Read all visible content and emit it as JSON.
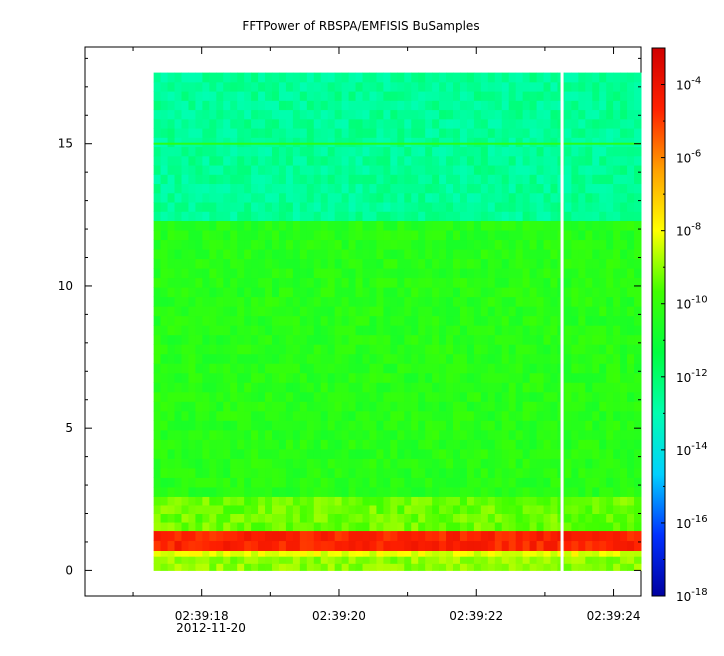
{
  "chart_data": {
    "type": "heatmap",
    "title": "FFTPower of RBSPA/EMFISIS  BuSamples",
    "xlabel": "",
    "ylabel": "",
    "x_ticks": [
      "02:39:18",
      "02:39:20",
      "02:39:22",
      "02:39:24"
    ],
    "x_date_label": "2012-11-20",
    "xlim": [
      "02:39:16.3",
      "02:39:24.4"
    ],
    "y_ticks": [
      "0",
      "5",
      "10",
      "15"
    ],
    "y_tick_values": [
      0,
      5,
      10,
      15
    ],
    "ylim": [
      -0.9,
      18.4
    ],
    "data_time_range": [
      "02:39:17.3",
      "02:39:24.4"
    ],
    "data_freq_range": [
      0,
      17.5
    ],
    "data_gap_time": "02:39:23.25",
    "colorbar": {
      "scale": "log",
      "range": [
        1e-18,
        0.001
      ],
      "tick_base": "10",
      "tick_exponents": [
        "-4",
        "-6",
        "-8",
        "-10",
        "-12",
        "-14",
        "-16",
        "-18"
      ],
      "tick_values": [
        -4,
        -6,
        -8,
        -10,
        -12,
        -14,
        -16,
        -18
      ],
      "colors": [
        "#0000a0",
        "#0030ff",
        "#00d0ff",
        "#00ffb0",
        "#00ff40",
        "#40ff00",
        "#ffff00",
        "#ffa000",
        "#ff2000",
        "#d00000"
      ]
    },
    "bands": [
      {
        "y0": 0,
        "y1": 0.5,
        "log_power": -9.0
      },
      {
        "y0": 0.5,
        "y1": 0.7,
        "log_power": -8.2
      },
      {
        "y0": 0.7,
        "y1": 1.4,
        "log_power": -4.6
      },
      {
        "y0": 1.4,
        "y1": 2.6,
        "log_power": -9.3
      },
      {
        "y0": 2.6,
        "y1": 12.3,
        "log_power": -10.3
      },
      {
        "y0": 12.3,
        "y1": 17.5,
        "log_power": -12.6
      }
    ],
    "line_at_y": 15.0
  }
}
